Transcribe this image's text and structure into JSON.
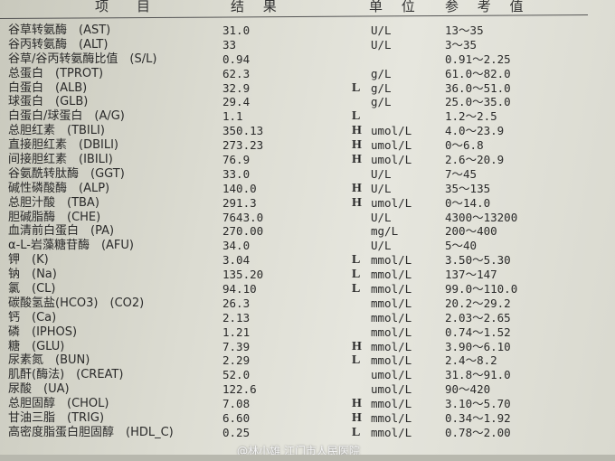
{
  "header": {
    "item": "项　目",
    "result": "结 果",
    "unit": "单 位",
    "reference": "参 考 值"
  },
  "rows": [
    {
      "name": "谷草转氨酶　(AST)",
      "result": "31.0",
      "flag": "",
      "unit": "U/L",
      "ref": "13～35"
    },
    {
      "name": "谷丙转氨酶　(ALT)",
      "result": "33",
      "flag": "",
      "unit": "U/L",
      "ref": "3～35"
    },
    {
      "name": "谷草/谷丙转氨酶比值　(S/L)",
      "result": "0.94",
      "flag": "",
      "unit": "",
      "ref": "0.91～2.25"
    },
    {
      "name": "总蛋白　(TPROT)",
      "result": "62.3",
      "flag": "",
      "unit": "g/L",
      "ref": "61.0～82.0"
    },
    {
      "name": "白蛋白　(ALB)",
      "result": "32.9",
      "flag": "L",
      "unit": "g/L",
      "ref": "36.0～51.0"
    },
    {
      "name": "球蛋白　(GLB)",
      "result": "29.4",
      "flag": "",
      "unit": "g/L",
      "ref": "25.0～35.0"
    },
    {
      "name": "白蛋白/球蛋白　(A/G)",
      "result": "1.1",
      "flag": "L",
      "unit": "",
      "ref": "1.2～2.5"
    },
    {
      "name": "总胆红素　(TBILI)",
      "result": "350.13",
      "flag": "H",
      "unit": "umol/L",
      "ref": "4.0～23.9"
    },
    {
      "name": "直接胆红素　(DBILI)",
      "result": "273.23",
      "flag": "H",
      "unit": "umol/L",
      "ref": "0～6.8"
    },
    {
      "name": "间接胆红素　(IBILI)",
      "result": "76.9",
      "flag": "H",
      "unit": "umol/L",
      "ref": "2.6～20.9"
    },
    {
      "name": "谷氨酰转肽酶　(GGT)",
      "result": "33.0",
      "flag": "",
      "unit": "U/L",
      "ref": "7～45"
    },
    {
      "name": "碱性磷酸酶　(ALP)",
      "result": "140.0",
      "flag": "H",
      "unit": "U/L",
      "ref": "35～135"
    },
    {
      "name": "总胆汁酸　(TBA)",
      "result": "291.3",
      "flag": "H",
      "unit": "umol/L",
      "ref": "0～14.0"
    },
    {
      "name": "胆碱脂酶　(CHE)",
      "result": "7643.0",
      "flag": "",
      "unit": "U/L",
      "ref": "4300～13200"
    },
    {
      "name": "血清前白蛋白　(PA)",
      "result": "270.00",
      "flag": "",
      "unit": "mg/L",
      "ref": "200～400"
    },
    {
      "name": "α-L-岩藻糖苷酶　(AFU)",
      "result": "34.0",
      "flag": "",
      "unit": "U/L",
      "ref": "5～40"
    },
    {
      "name": "钾　(K)",
      "result": "3.04",
      "flag": "L",
      "unit": "mmol/L",
      "ref": "3.50～5.30"
    },
    {
      "name": "钠　(Na)",
      "result": "135.20",
      "flag": "L",
      "unit": "mmol/L",
      "ref": "137～147"
    },
    {
      "name": "氯　(CL)",
      "result": "94.10",
      "flag": "L",
      "unit": "mmol/L",
      "ref": "99.0～110.0"
    },
    {
      "name": "碳酸氢盐(HCO3)　(CO2)",
      "result": "26.3",
      "flag": "",
      "unit": "mmol/L",
      "ref": "20.2～29.2"
    },
    {
      "name": "钙　(Ca)",
      "result": "2.13",
      "flag": "",
      "unit": "mmol/L",
      "ref": "2.03～2.65"
    },
    {
      "name": "磷　(IPHOS)",
      "result": "1.21",
      "flag": "",
      "unit": "mmol/L",
      "ref": "0.74～1.52"
    },
    {
      "name": "糖　(GLU)",
      "result": "7.39",
      "flag": "H",
      "unit": "mmol/L",
      "ref": "3.90～6.10"
    },
    {
      "name": "尿素氮　(BUN)",
      "result": "2.29",
      "flag": "L",
      "unit": "mmol/L",
      "ref": "2.4～8.2"
    },
    {
      "name": "肌酐(酶法)　(CREAT)",
      "result": "52.0",
      "flag": "",
      "unit": "umol/L",
      "ref": "31.8～91.0"
    },
    {
      "name": "尿酸　(UA)",
      "result": "122.6",
      "flag": "",
      "unit": "umol/L",
      "ref": "90～420"
    },
    {
      "name": "总胆固醇　(CHOL)",
      "result": "7.08",
      "flag": "H",
      "unit": "mmol/L",
      "ref": "3.10～5.70"
    },
    {
      "name": "甘油三脂　(TRIG)",
      "result": "6.60",
      "flag": "H",
      "unit": "mmol/L",
      "ref": "0.34～1.92"
    },
    {
      "name": "高密度脂蛋白胆固醇　(HDL_C)",
      "result": "0.25",
      "flag": "L",
      "unit": "mmol/L",
      "ref": "0.78～2.00"
    }
  ],
  "watermark": "@林小雄 江门市人民医院"
}
